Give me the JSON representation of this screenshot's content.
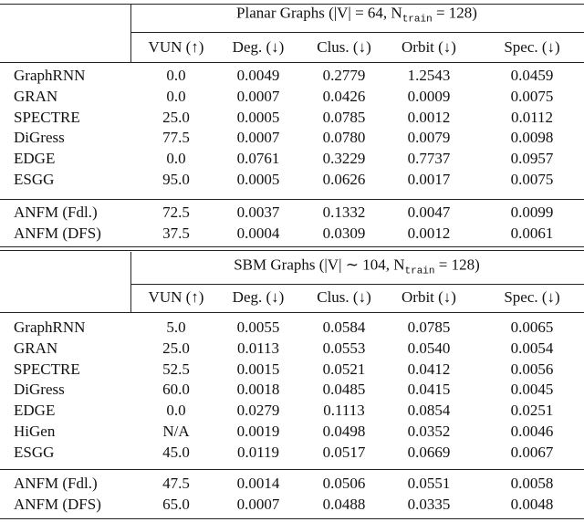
{
  "columns": [
    "VUN (↑)",
    "Deg. (↓)",
    "Clus. (↓)",
    "Orbit (↓)",
    "Spec. (↓)"
  ],
  "sections": [
    {
      "title": {
        "prefix": "Planar Graphs (|V| = 64, N",
        "subscript": "train",
        "suffix": " = 128)"
      },
      "groups": [
        [
          [
            "GraphRNN",
            "0.0",
            "0.0049",
            "0.2779",
            "1.2543",
            "0.0459"
          ],
          [
            "GRAN",
            "0.0",
            "0.0007",
            "0.0426",
            "0.0009",
            "0.0075"
          ],
          [
            "SPECTRE",
            "25.0",
            "0.0005",
            "0.0785",
            "0.0012",
            "0.0112"
          ],
          [
            "DiGress",
            "77.5",
            "0.0007",
            "0.0780",
            "0.0079",
            "0.0098"
          ],
          [
            "EDGE",
            "0.0",
            "0.0761",
            "0.3229",
            "0.7737",
            "0.0957"
          ],
          [
            "ESGG",
            "95.0",
            "0.0005",
            "0.0626",
            "0.0017",
            "0.0075"
          ]
        ],
        [
          [
            "ANFM (Fdl.)",
            "72.5",
            "0.0037",
            "0.1332",
            "0.0047",
            "0.0099"
          ],
          [
            "ANFM (DFS)",
            "37.5",
            "0.0004",
            "0.0309",
            "0.0012",
            "0.0061"
          ]
        ]
      ]
    },
    {
      "title": {
        "prefix": "SBM Graphs (|V| ∼ 104, N",
        "subscript": "train",
        "suffix": " = 128)"
      },
      "groups": [
        [
          [
            "GraphRNN",
            "5.0",
            "0.0055",
            "0.0584",
            "0.0785",
            "0.0065"
          ],
          [
            "GRAN",
            "25.0",
            "0.0113",
            "0.0553",
            "0.0540",
            "0.0054"
          ],
          [
            "SPECTRE",
            "52.5",
            "0.0015",
            "0.0521",
            "0.0412",
            "0.0056"
          ],
          [
            "DiGress",
            "60.0",
            "0.0018",
            "0.0485",
            "0.0415",
            "0.0045"
          ],
          [
            "EDGE",
            "0.0",
            "0.0279",
            "0.1113",
            "0.0854",
            "0.0251"
          ],
          [
            "HiGen",
            "N/A",
            "0.0019",
            "0.0498",
            "0.0352",
            "0.0046"
          ],
          [
            "ESGG",
            "45.0",
            "0.0119",
            "0.0517",
            "0.0669",
            "0.0067"
          ]
        ],
        [
          [
            "ANFM (Fdl.)",
            "47.5",
            "0.0014",
            "0.0506",
            "0.0551",
            "0.0058"
          ],
          [
            "ANFM (DFS)",
            "65.0",
            "0.0007",
            "0.0488",
            "0.0335",
            "0.0048"
          ]
        ]
      ]
    }
  ]
}
